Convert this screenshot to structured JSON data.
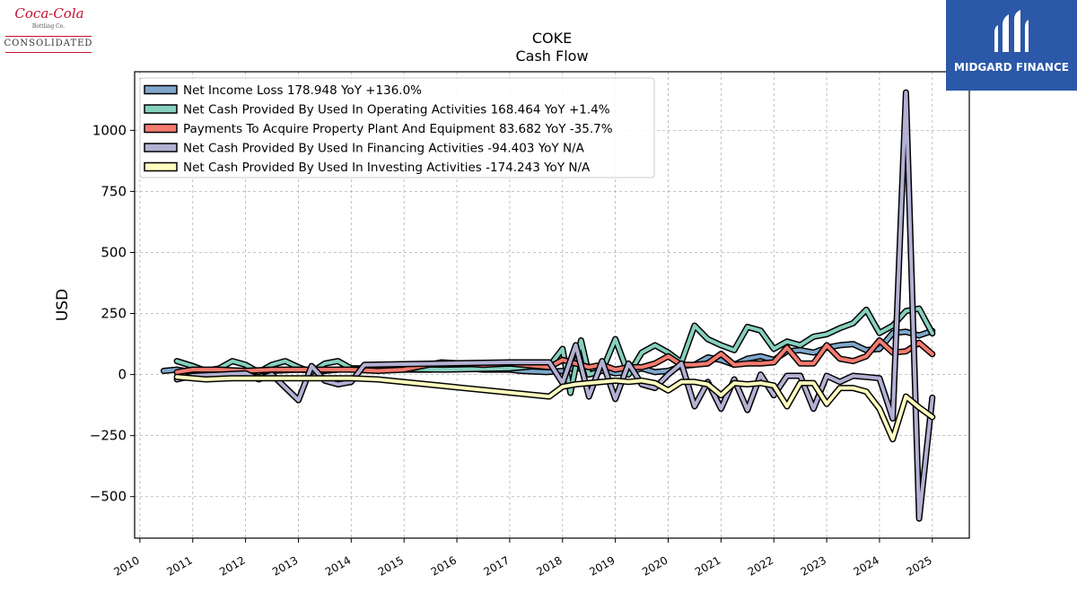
{
  "logos": {
    "left": {
      "brand": "Coca-Cola",
      "sub": "Bottling Co.",
      "name": "CONSOLIDATED"
    },
    "right": {
      "name": "MIDGARD FINANCE"
    }
  },
  "colors": {
    "net_income": "#7fa8cc",
    "operating": "#86d0be",
    "capex": "#f57b70",
    "financing": "#b3b1d4",
    "investing": "#fffdbf",
    "outline": "#000000",
    "grid": "#b0b0b0"
  },
  "chart_data": {
    "type": "line",
    "title": "COKE",
    "subtitle": "Cash Flow",
    "ylabel": "USD",
    "xlabel": "",
    "xlim": [
      2009.9,
      2025.7
    ],
    "ylim": [
      -670,
      1240
    ],
    "yticks": [
      -500,
      -250,
      0,
      250,
      500,
      750,
      1000
    ],
    "ytick_labels": [
      "−500",
      "−250",
      "0",
      "250",
      "500",
      "750",
      "1000"
    ],
    "xticks": [
      2010,
      2011,
      2012,
      2013,
      2014,
      2015,
      2016,
      2017,
      2018,
      2019,
      2020,
      2021,
      2022,
      2023,
      2024,
      2025
    ],
    "xtick_labels": [
      "2010",
      "2011",
      "2012",
      "2013",
      "2014",
      "2015",
      "2016",
      "2017",
      "2018",
      "2019",
      "2020",
      "2021",
      "2022",
      "2023",
      "2024",
      "2025"
    ],
    "grid": true,
    "legend_position": "top-left",
    "series": [
      {
        "name": "Net Income Loss",
        "legend": "Net Income Loss  178.948 YoY +136.0%",
        "color_key": "net_income",
        "points": [
          [
            2010.45,
            15
          ],
          [
            2010.7,
            20
          ],
          [
            2011.0,
            10
          ],
          [
            2011.5,
            15
          ],
          [
            2012.0,
            10
          ],
          [
            2012.5,
            15
          ],
          [
            2013.0,
            20
          ],
          [
            2013.5,
            15
          ],
          [
            2014.0,
            25
          ],
          [
            2014.5,
            25
          ],
          [
            2015.0,
            20
          ],
          [
            2015.5,
            20
          ],
          [
            2016.0,
            25
          ],
          [
            2016.2,
            25
          ],
          [
            2016.5,
            20
          ],
          [
            2017.0,
            20
          ],
          [
            2017.2,
            15
          ],
          [
            2017.7,
            10
          ],
          [
            2018.0,
            15
          ],
          [
            2018.25,
            30
          ],
          [
            2018.5,
            10
          ],
          [
            2018.75,
            20
          ],
          [
            2019.0,
            5
          ],
          [
            2019.25,
            10
          ],
          [
            2019.5,
            25
          ],
          [
            2019.75,
            10
          ],
          [
            2020.0,
            15
          ],
          [
            2020.25,
            35
          ],
          [
            2020.5,
            40
          ],
          [
            2020.75,
            70
          ],
          [
            2021.0,
            60
          ],
          [
            2021.25,
            40
          ],
          [
            2021.5,
            65
          ],
          [
            2021.75,
            75
          ],
          [
            2022.0,
            60
          ],
          [
            2022.25,
            95
          ],
          [
            2022.5,
            100
          ],
          [
            2022.75,
            90
          ],
          [
            2023.0,
            110
          ],
          [
            2023.25,
            120
          ],
          [
            2023.5,
            125
          ],
          [
            2023.75,
            100
          ],
          [
            2024.0,
            105
          ],
          [
            2024.25,
            170
          ],
          [
            2024.5,
            175
          ],
          [
            2024.75,
            160
          ],
          [
            2025.0,
            178.948
          ]
        ]
      },
      {
        "name": "Net Cash Provided By Used In Operating Activities",
        "legend": "Net Cash Provided By Used In Operating Activities  168.464 YoY +1.4%",
        "color_key": "operating",
        "points": [
          [
            2010.7,
            55
          ],
          [
            2011.0,
            35
          ],
          [
            2011.25,
            15
          ],
          [
            2011.5,
            25
          ],
          [
            2011.75,
            55
          ],
          [
            2012.0,
            40
          ],
          [
            2012.25,
            10
          ],
          [
            2012.5,
            40
          ],
          [
            2012.75,
            55
          ],
          [
            2013.0,
            30
          ],
          [
            2013.25,
            10
          ],
          [
            2013.5,
            45
          ],
          [
            2013.75,
            55
          ],
          [
            2014.0,
            25
          ],
          [
            2015.75,
            20
          ],
          [
            2017.0,
            25
          ],
          [
            2017.5,
            35
          ],
          [
            2017.75,
            35
          ],
          [
            2018.0,
            105
          ],
          [
            2018.15,
            -75
          ],
          [
            2018.35,
            140
          ],
          [
            2018.5,
            0
          ],
          [
            2018.75,
            15
          ],
          [
            2019.0,
            145
          ],
          [
            2019.25,
            0
          ],
          [
            2019.5,
            90
          ],
          [
            2019.75,
            120
          ],
          [
            2020.0,
            90
          ],
          [
            2020.25,
            50
          ],
          [
            2020.5,
            200
          ],
          [
            2020.75,
            145
          ],
          [
            2021.0,
            120
          ],
          [
            2021.25,
            100
          ],
          [
            2021.5,
            195
          ],
          [
            2021.75,
            180
          ],
          [
            2022.0,
            105
          ],
          [
            2022.25,
            135
          ],
          [
            2022.5,
            120
          ],
          [
            2022.75,
            155
          ],
          [
            2023.0,
            165
          ],
          [
            2023.25,
            190
          ],
          [
            2023.5,
            210
          ],
          [
            2023.75,
            265
          ],
          [
            2024.0,
            170
          ],
          [
            2024.25,
            200
          ],
          [
            2024.5,
            260
          ],
          [
            2024.75,
            270
          ],
          [
            2025.0,
            168.464
          ]
        ]
      },
      {
        "name": "Payments To Acquire Property Plant And Equipment",
        "legend": "Payments To Acquire Property Plant And Equipment  83.682 YoY -35.7%",
        "color_key": "capex",
        "points": [
          [
            2010.7,
            10
          ],
          [
            2011.0,
            20
          ],
          [
            2011.5,
            20
          ],
          [
            2012.0,
            15
          ],
          [
            2012.5,
            20
          ],
          [
            2013.0,
            20
          ],
          [
            2013.5,
            20
          ],
          [
            2014.0,
            20
          ],
          [
            2014.5,
            15
          ],
          [
            2015.0,
            20
          ],
          [
            2015.7,
            50
          ],
          [
            2016.5,
            40
          ],
          [
            2017.0,
            45
          ],
          [
            2017.75,
            30
          ],
          [
            2018.0,
            60
          ],
          [
            2018.25,
            45
          ],
          [
            2018.5,
            30
          ],
          [
            2018.75,
            40
          ],
          [
            2019.0,
            20
          ],
          [
            2019.25,
            30
          ],
          [
            2019.5,
            30
          ],
          [
            2019.75,
            45
          ],
          [
            2020.0,
            75
          ],
          [
            2020.25,
            40
          ],
          [
            2020.5,
            40
          ],
          [
            2020.75,
            45
          ],
          [
            2021.0,
            85
          ],
          [
            2021.25,
            40
          ],
          [
            2021.5,
            45
          ],
          [
            2021.75,
            45
          ],
          [
            2022.0,
            50
          ],
          [
            2022.25,
            110
          ],
          [
            2022.5,
            45
          ],
          [
            2022.75,
            45
          ],
          [
            2023.0,
            120
          ],
          [
            2023.25,
            65
          ],
          [
            2023.5,
            55
          ],
          [
            2023.75,
            75
          ],
          [
            2024.0,
            140
          ],
          [
            2024.25,
            90
          ],
          [
            2024.5,
            95
          ],
          [
            2024.75,
            130
          ],
          [
            2025.0,
            83.682
          ]
        ]
      },
      {
        "name": "Net Cash Provided By Used In Financing Activities",
        "legend": "Net Cash Provided By Used In Financing Activities  -94.403 YoY N/A",
        "color_key": "financing",
        "points": [
          [
            2010.7,
            -20
          ],
          [
            2011.0,
            -5
          ],
          [
            2011.5,
            0
          ],
          [
            2012.0,
            5
          ],
          [
            2012.25,
            -20
          ],
          [
            2012.5,
            0
          ],
          [
            2013.0,
            -105
          ],
          [
            2013.25,
            35
          ],
          [
            2013.5,
            -25
          ],
          [
            2013.75,
            -40
          ],
          [
            2014.0,
            -30
          ],
          [
            2014.25,
            40
          ],
          [
            2017.0,
            50
          ],
          [
            2017.75,
            50
          ],
          [
            2018.0,
            -35
          ],
          [
            2018.25,
            120
          ],
          [
            2018.5,
            -90
          ],
          [
            2018.75,
            55
          ],
          [
            2019.0,
            -100
          ],
          [
            2019.25,
            45
          ],
          [
            2019.5,
            -40
          ],
          [
            2019.75,
            -55
          ],
          [
            2020.0,
            0
          ],
          [
            2020.25,
            45
          ],
          [
            2020.5,
            -130
          ],
          [
            2020.75,
            -30
          ],
          [
            2021.0,
            -140
          ],
          [
            2021.25,
            -20
          ],
          [
            2021.5,
            -145
          ],
          [
            2021.75,
            0
          ],
          [
            2022.0,
            -85
          ],
          [
            2022.25,
            -5
          ],
          [
            2022.5,
            -5
          ],
          [
            2022.75,
            -140
          ],
          [
            2023.0,
            -5
          ],
          [
            2023.25,
            -30
          ],
          [
            2023.5,
            -5
          ],
          [
            2023.75,
            -10
          ],
          [
            2024.0,
            -15
          ],
          [
            2024.25,
            -180
          ],
          [
            2024.5,
            1155
          ],
          [
            2024.75,
            -590
          ],
          [
            2025.0,
            -94.403
          ]
        ]
      },
      {
        "name": "Net Cash Provided By Used In Investing Activities",
        "legend": "Net Cash Provided By Used In Investing Activities  -174.243 YoY N/A",
        "color_key": "investing",
        "points": [
          [
            2010.7,
            -10
          ],
          [
            2011.0,
            -15
          ],
          [
            2011.25,
            -20
          ],
          [
            2011.75,
            -15
          ],
          [
            2012.0,
            -15
          ],
          [
            2012.5,
            -15
          ],
          [
            2013.0,
            -15
          ],
          [
            2013.5,
            -15
          ],
          [
            2014.0,
            -15
          ],
          [
            2014.5,
            -20
          ],
          [
            2017.75,
            -90
          ],
          [
            2018.0,
            -50
          ],
          [
            2018.25,
            -40
          ],
          [
            2018.5,
            -35
          ],
          [
            2019.0,
            -25
          ],
          [
            2019.25,
            -30
          ],
          [
            2019.5,
            -25
          ],
          [
            2019.75,
            -35
          ],
          [
            2020.0,
            -65
          ],
          [
            2020.25,
            -30
          ],
          [
            2020.5,
            -30
          ],
          [
            2020.75,
            -40
          ],
          [
            2021.0,
            -85
          ],
          [
            2021.25,
            -35
          ],
          [
            2021.5,
            -40
          ],
          [
            2021.75,
            -35
          ],
          [
            2022.0,
            -45
          ],
          [
            2022.25,
            -130
          ],
          [
            2022.5,
            -35
          ],
          [
            2022.75,
            -35
          ],
          [
            2023.0,
            -120
          ],
          [
            2023.25,
            -55
          ],
          [
            2023.5,
            -55
          ],
          [
            2023.75,
            -70
          ],
          [
            2024.0,
            -140
          ],
          [
            2024.25,
            -265
          ],
          [
            2024.5,
            -90
          ],
          [
            2024.75,
            -135
          ],
          [
            2025.0,
            -174.243
          ]
        ]
      }
    ]
  }
}
